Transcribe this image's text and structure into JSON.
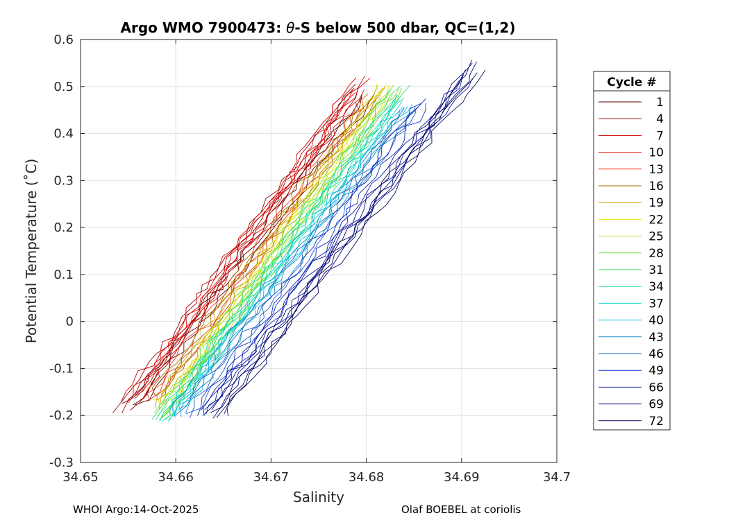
{
  "chart_data": {
    "type": "line",
    "title_prefix": "Argo WMO 7900473: ",
    "title_theta": "θ",
    "title_suffix": "-S below 500 dbar,  QC=(1,2)",
    "xlabel": "Salinity",
    "ylabel": "Potential Temperature (˚C)",
    "xlim": [
      34.65,
      34.7
    ],
    "ylim": [
      -0.3,
      0.6
    ],
    "xticks": [
      "34.65",
      "34.66",
      "34.67",
      "34.68",
      "34.69",
      "34.7"
    ],
    "yticks": [
      "-0.3",
      "-0.2",
      "-0.1",
      "0",
      "0.1",
      "0.2",
      "0.3",
      "0.4",
      "0.5",
      "0.6"
    ],
    "grid": true,
    "legend_title": "Cycle #",
    "legend_position": "outside-right",
    "series": [
      {
        "name": "1",
        "color": "#5a0000",
        "x": [
          34.6555,
          34.68
        ],
        "y": [
          -0.18,
          0.48
        ]
      },
      {
        "name": "4",
        "color": "#990000",
        "x": [
          34.6545,
          34.679
        ],
        "y": [
          -0.19,
          0.5
        ]
      },
      {
        "name": "7",
        "color": "#d40000",
        "x": [
          34.655,
          34.6795
        ],
        "y": [
          -0.17,
          0.52
        ]
      },
      {
        "name": "10",
        "color": "#e51010",
        "x": [
          34.656,
          34.679
        ],
        "y": [
          -0.16,
          0.49
        ]
      },
      {
        "name": "13",
        "color": "#ea3a1a",
        "x": [
          34.6575,
          34.68
        ],
        "y": [
          -0.17,
          0.47
        ]
      },
      {
        "name": "16",
        "color": "#b06a00",
        "x": [
          34.658,
          34.6805
        ],
        "y": [
          -0.16,
          0.48
        ]
      },
      {
        "name": "19",
        "color": "#c8a000",
        "x": [
          34.658,
          34.6815
        ],
        "y": [
          -0.18,
          0.5
        ]
      },
      {
        "name": "22",
        "color": "#e6e600",
        "x": [
          34.6585,
          34.682
        ],
        "y": [
          -0.19,
          0.5
        ]
      },
      {
        "name": "25",
        "color": "#c0e030",
        "x": [
          34.6585,
          34.6825
        ],
        "y": [
          -0.2,
          0.49
        ]
      },
      {
        "name": "28",
        "color": "#70e040",
        "x": [
          34.6585,
          34.683
        ],
        "y": [
          -0.2,
          0.5
        ]
      },
      {
        "name": "31",
        "color": "#30e060",
        "x": [
          34.6585,
          34.6835
        ],
        "y": [
          -0.21,
          0.5
        ]
      },
      {
        "name": "34",
        "color": "#20e0a0",
        "x": [
          34.6585,
          34.6835
        ],
        "y": [
          -0.21,
          0.48
        ]
      },
      {
        "name": "37",
        "color": "#10d8d0",
        "x": [
          34.659,
          34.6835
        ],
        "y": [
          -0.21,
          0.47
        ]
      },
      {
        "name": "40",
        "color": "#10b8e8",
        "x": [
          34.6595,
          34.684
        ],
        "y": [
          -0.2,
          0.46
        ]
      },
      {
        "name": "43",
        "color": "#1a8ec0",
        "x": [
          34.66,
          34.6845
        ],
        "y": [
          -0.19,
          0.45
        ]
      },
      {
        "name": "46",
        "color": "#1a60d0",
        "x": [
          34.661,
          34.685
        ],
        "y": [
          -0.2,
          0.46
        ]
      },
      {
        "name": "49",
        "color": "#1030c0",
        "x": [
          34.6625,
          34.686
        ],
        "y": [
          -0.2,
          0.47
        ]
      },
      {
        "name": "66",
        "color": "#0a1aa0",
        "x": [
          34.663,
          34.6905
        ],
        "y": [
          -0.19,
          0.52
        ]
      },
      {
        "name": "69",
        "color": "#0a0a80",
        "x": [
          34.664,
          34.6915
        ],
        "y": [
          -0.2,
          0.55
        ]
      },
      {
        "name": "72",
        "color": "#06065c",
        "x": [
          34.6645,
          34.6915
        ],
        "y": [
          -0.2,
          0.53
        ]
      }
    ]
  },
  "footer": {
    "left": "WHOI Argo:14-Oct-2025",
    "right": "Olaf BOEBEL at coriolis"
  }
}
